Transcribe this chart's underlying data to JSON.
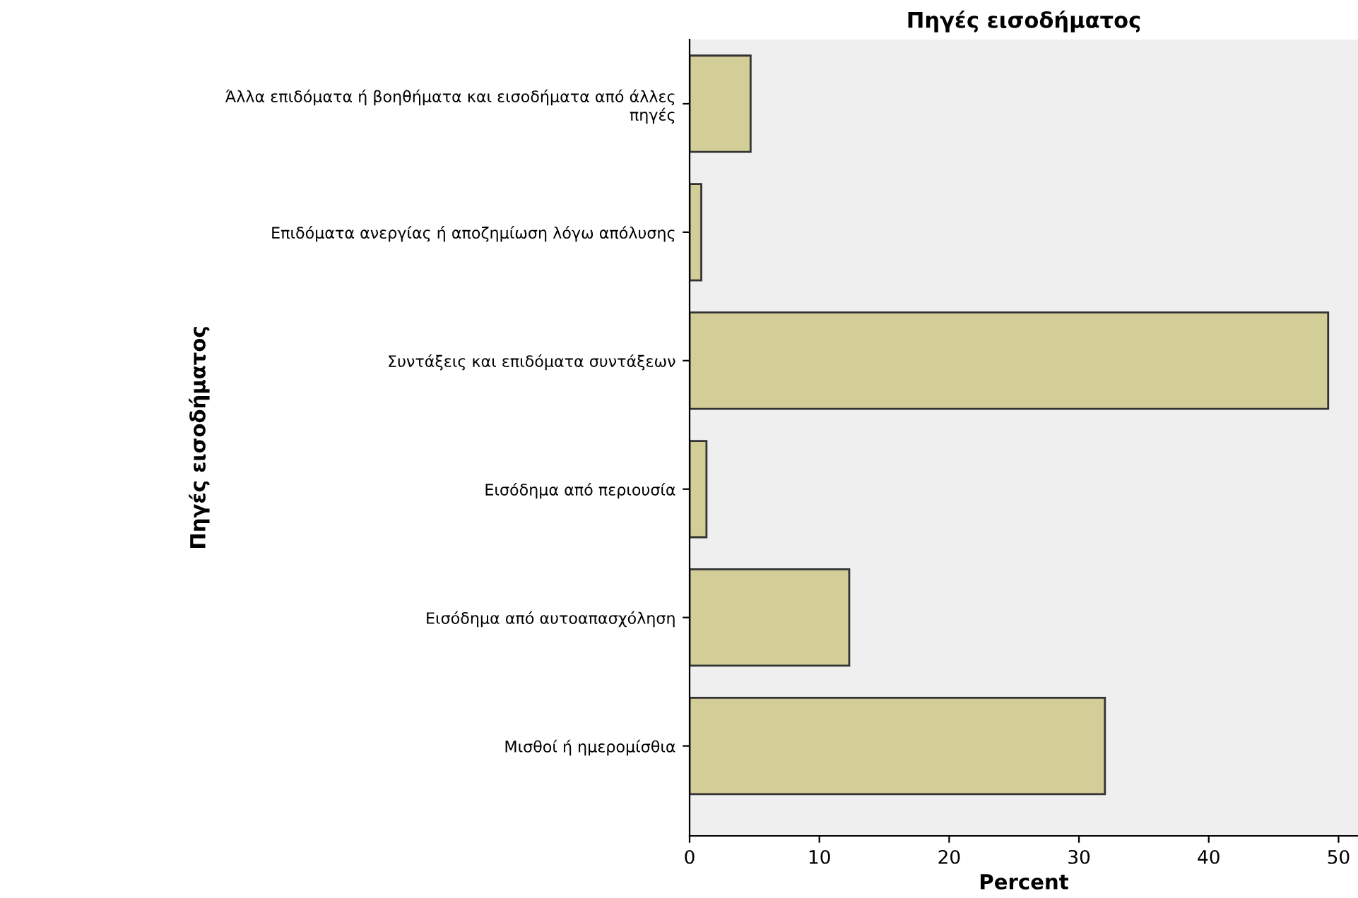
{
  "chart_data": {
    "type": "bar",
    "orientation": "horizontal",
    "title": "Πηγές εισοδήματος",
    "xlabel": "Percent",
    "ylabel": "Πηγές εισοδήματος",
    "categories": [
      "Άλλα επιδόματα ή βοηθήματα και εισοδήματα από άλλες\nπηγές",
      "Επιδόματα ανεργίας ή αποζημίωση λόγω απόλυσης",
      "Συντάξεις και επιδόματα συντάξεων",
      "Εισόδημα από περιουσία",
      "Εισόδημα από αυτοαπασχόληση",
      "Μισθοί ή ημερομίσθια"
    ],
    "values": [
      4.7,
      0.9,
      49.2,
      1.3,
      12.3,
      32.0
    ],
    "color": "#d3ce97",
    "xlim": [
      0,
      51.5
    ],
    "xticks": [
      0,
      10,
      20,
      30,
      40,
      50
    ],
    "grid": false,
    "legend": false
  }
}
